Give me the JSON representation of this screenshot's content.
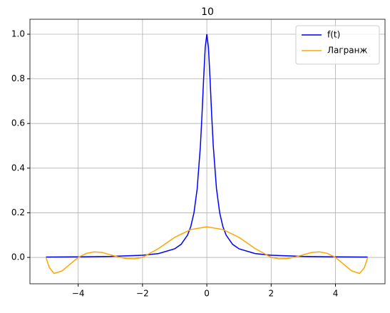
{
  "chart_data": {
    "type": "line",
    "title": "10",
    "xlim": [
      -5.5,
      5.54
    ],
    "ylim": [
      -0.118,
      1.067
    ],
    "xticks": [
      {
        "value": -4,
        "label": "−4"
      },
      {
        "value": -2,
        "label": "−2"
      },
      0,
      2,
      4
    ],
    "yticks": [
      {
        "value": 0,
        "label": "0.0"
      },
      0.2,
      0.4,
      0.6,
      0.8,
      {
        "value": 1,
        "label": "1.0"
      }
    ],
    "grid": true,
    "legend": "upper right",
    "series": [
      {
        "name": "f(t)",
        "color": "#0000ff",
        "x": [
          -5,
          -4,
          -3,
          -2,
          -1.5,
          -1,
          -0.8,
          -0.6,
          -0.5,
          -0.4,
          -0.3,
          -0.2,
          -0.15,
          -0.1,
          -0.05,
          0,
          0.05,
          0.1,
          0.15,
          0.2,
          0.3,
          0.4,
          0.5,
          0.6,
          0.8,
          1,
          1.5,
          2,
          3,
          4,
          5
        ],
        "values": [
          0.0016,
          0.0025,
          0.0044,
          0.0099,
          0.0175,
          0.0385,
          0.0588,
          0.1,
          0.1379,
          0.2,
          0.3077,
          0.5,
          0.64,
          0.8,
          0.9412,
          1,
          0.9412,
          0.8,
          0.64,
          0.5,
          0.3077,
          0.2,
          0.1379,
          0.1,
          0.0588,
          0.0385,
          0.0175,
          0.0099,
          0.0044,
          0.0025,
          0.0016
        ]
      },
      {
        "name": "Лагранж",
        "color": "#ffa500",
        "x": [
          -5,
          -4.9,
          -4.75,
          -4.5,
          -4.25,
          -4,
          -3.75,
          -3.5,
          -3.25,
          -3,
          -2.75,
          -2.5,
          -2.25,
          -2,
          -1.5,
          -1,
          -0.5,
          0,
          0.5,
          1,
          1.5,
          2,
          2.25,
          2.5,
          2.75,
          3,
          3.25,
          3.5,
          3.75,
          4,
          4.25,
          4.5,
          4.75,
          4.9,
          5
        ],
        "values": [
          0.0,
          -0.045,
          -0.072,
          -0.06,
          -0.03,
          0.0,
          0.018,
          0.025,
          0.022,
          0.012,
          0.002,
          -0.005,
          -0.006,
          0.0,
          0.04,
          0.09,
          0.125,
          0.137,
          0.125,
          0.09,
          0.04,
          0.0,
          -0.006,
          -0.005,
          0.002,
          0.012,
          0.022,
          0.025,
          0.018,
          0.0,
          -0.03,
          -0.06,
          -0.072,
          -0.045,
          0.0
        ]
      }
    ]
  }
}
